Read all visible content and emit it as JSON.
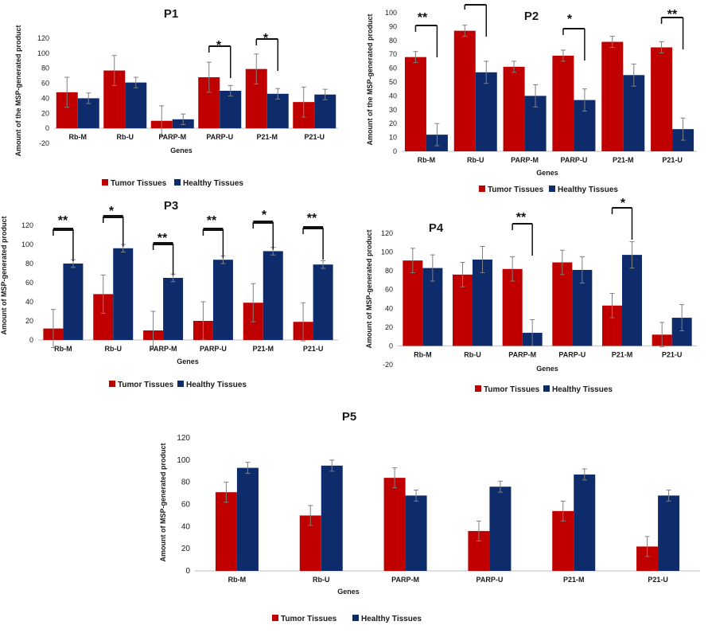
{
  "legend": {
    "tumor": "Tumor Tissues",
    "healthy": "Healthy Tissues"
  },
  "colors": {
    "tumor": "#C00000",
    "healthy": "#0E2B6B",
    "error": "#7f7f7f"
  },
  "chart_data": [
    {
      "type": "bar",
      "title": "P1",
      "categories": [
        "Rb-M",
        "Rb-U",
        "PARP-M",
        "PARP-U",
        "P21-M",
        "P21-U"
      ],
      "xlabel": "Genes",
      "ylabel": "Amount of the MSP-generated product",
      "ylim": [
        -20,
        120
      ],
      "yticks": [
        -20,
        0,
        20,
        40,
        60,
        80,
        100,
        120
      ],
      "series": [
        {
          "name": "Tumor Tissues",
          "values": [
            48,
            77,
            10,
            68,
            79,
            35
          ],
          "errors": [
            20,
            20,
            20,
            20,
            20,
            20
          ]
        },
        {
          "name": "Healthy Tissues",
          "values": [
            40,
            61,
            12,
            50,
            46,
            45
          ],
          "errors": [
            7,
            7,
            7,
            7,
            7,
            7
          ]
        }
      ],
      "significance": [
        {
          "category": "PARP-U",
          "label": "*"
        },
        {
          "category": "P21-M",
          "label": "*"
        }
      ],
      "legend_position": "bottom"
    },
    {
      "type": "bar",
      "title": "P2",
      "categories": [
        "Rb-M",
        "Rb-U",
        "PARP-M",
        "PARP-U",
        "P21-M",
        "P21-U"
      ],
      "xlabel": "Genes",
      "ylabel": "Amount of the MSP-generated product",
      "ylim": [
        0,
        100
      ],
      "yticks": [
        0,
        10,
        20,
        30,
        40,
        50,
        60,
        70,
        80,
        90,
        100
      ],
      "series": [
        {
          "name": "Tumor Tissues",
          "values": [
            68,
            87,
            61,
            69,
            79,
            75
          ],
          "errors": [
            4,
            4,
            4,
            4,
            4,
            4
          ]
        },
        {
          "name": "Healthy Tissues",
          "values": [
            12,
            57,
            40,
            37,
            55,
            16
          ],
          "errors": [
            8,
            8,
            8,
            8,
            8,
            8
          ]
        }
      ],
      "significance": [
        {
          "category": "Rb-M",
          "label": "**"
        },
        {
          "category": "Rb-U",
          "label": ""
        },
        {
          "category": "PARP-U",
          "label": "*"
        },
        {
          "category": "P21-U",
          "label": "**"
        }
      ],
      "legend_position": "bottom"
    },
    {
      "type": "bar",
      "title": "P3",
      "categories": [
        "Rb-M",
        "Rb-U",
        "PARP-M",
        "PARP-U",
        "P21-M",
        "P21-U"
      ],
      "xlabel": "Genes",
      "ylabel": "Amount of MSP-generated product",
      "ylim": [
        0,
        120
      ],
      "yticks": [
        0,
        20,
        40,
        60,
        80,
        100,
        120
      ],
      "series": [
        {
          "name": "Tumor Tissues",
          "values": [
            12,
            48,
            10,
            20,
            39,
            19
          ],
          "errors": [
            20,
            20,
            20,
            20,
            20,
            20
          ]
        },
        {
          "name": "Healthy Tissues",
          "values": [
            80,
            96,
            65,
            84,
            93,
            79
          ],
          "errors": [
            4,
            4,
            4,
            4,
            4,
            4
          ]
        }
      ],
      "significance": [
        {
          "category": "Rb-M",
          "label": "**"
        },
        {
          "category": "Rb-U",
          "label": "*"
        },
        {
          "category": "PARP-M",
          "label": "**"
        },
        {
          "category": "PARP-U",
          "label": "**"
        },
        {
          "category": "P21-M",
          "label": "*"
        },
        {
          "category": "P21-U",
          "label": "**"
        }
      ],
      "legend_position": "bottom"
    },
    {
      "type": "bar",
      "title": "P4",
      "categories": [
        "Rb-M",
        "Rb-U",
        "PARP-M",
        "PARP-U",
        "P21-M",
        "P21-U"
      ],
      "xlabel": "Genes",
      "ylabel": "Amount of MSP-generated product",
      "ylim": [
        -20,
        120
      ],
      "yticks": [
        -20,
        0,
        20,
        40,
        60,
        80,
        100,
        120
      ],
      "series": [
        {
          "name": "Tumor Tissues",
          "values": [
            91,
            76,
            82,
            89,
            43,
            12
          ],
          "errors": [
            13,
            13,
            13,
            13,
            13,
            13
          ]
        },
        {
          "name": "Healthy Tissues",
          "values": [
            83,
            92,
            14,
            81,
            97,
            30
          ],
          "errors": [
            14,
            14,
            14,
            14,
            14,
            14
          ]
        }
      ],
      "significance": [
        {
          "category": "PARP-M",
          "label": "**"
        },
        {
          "category": "P21-M",
          "label": "*"
        }
      ],
      "legend_position": "bottom"
    },
    {
      "type": "bar",
      "title": "P5",
      "categories": [
        "Rb-M",
        "Rb-U",
        "PARP-M",
        "PARP-U",
        "P21-M",
        "P21-U"
      ],
      "xlabel": "Genes",
      "ylabel": "Amount of MSP-generated product",
      "ylim": [
        0,
        120
      ],
      "yticks": [
        0,
        20,
        40,
        60,
        80,
        100,
        120
      ],
      "series": [
        {
          "name": "Tumor Tissues",
          "values": [
            71,
            50,
            84,
            36,
            54,
            22
          ],
          "errors": [
            9,
            9,
            9,
            9,
            9,
            9
          ]
        },
        {
          "name": "Healthy Tissues",
          "values": [
            93,
            95,
            68,
            76,
            87,
            68
          ],
          "errors": [
            5,
            5,
            5,
            5,
            5,
            5
          ]
        }
      ],
      "significance": [],
      "legend_position": "bottom"
    }
  ]
}
